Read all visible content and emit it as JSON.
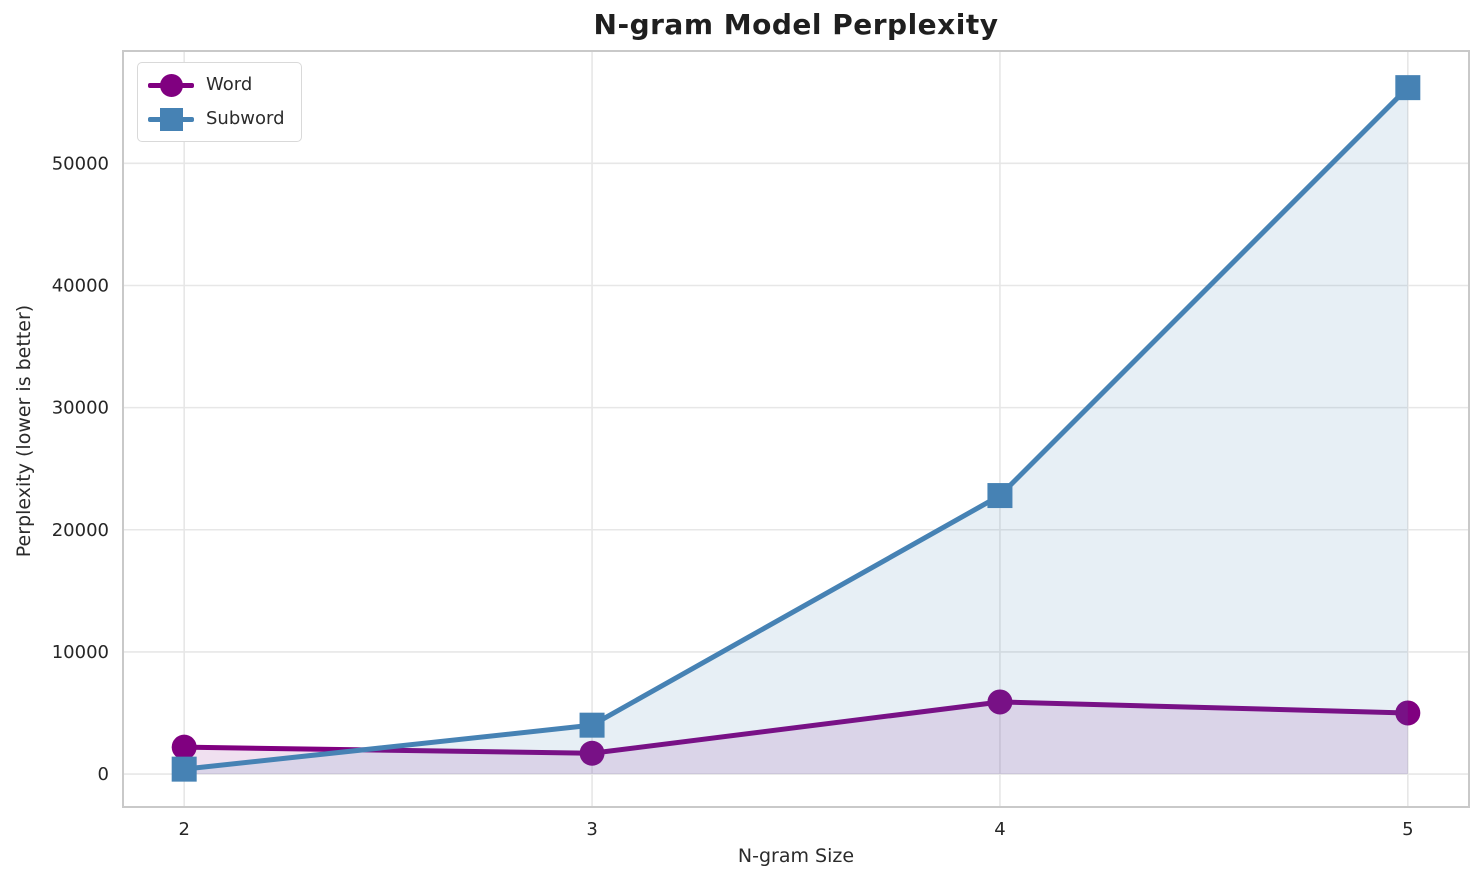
{
  "chart_data": {
    "type": "line",
    "title": "N-gram Model Perplexity",
    "xlabel": "N-gram Size",
    "ylabel": "Perplexity (lower is better)",
    "x": [
      2,
      3,
      4,
      5
    ],
    "xticks": [
      "2",
      "3",
      "4",
      "5"
    ],
    "yticks": [
      0,
      10000,
      20000,
      30000,
      40000,
      50000
    ],
    "xlim": [
      1.85,
      5.15
    ],
    "ylim": [
      -2700,
      59200
    ],
    "grid": true,
    "legend_position": "upper left",
    "baseline": 0,
    "series": [
      {
        "name": "Word",
        "marker": "circle",
        "color": "#800080",
        "fill_opacity": 0.12,
        "values": [
          2200,
          1700,
          5900,
          5000
        ]
      },
      {
        "name": "Subword",
        "marker": "square",
        "color": "#4682B4",
        "fill_opacity": 0.13,
        "values": [
          400,
          4000,
          22800,
          56200
        ]
      }
    ],
    "style": {
      "background": "#ffffff",
      "grid_color": "#e7e7e7",
      "spine_color": "#c9c9c9",
      "tick_label_color": "#262626",
      "title_color": "#1f1f1f"
    }
  }
}
